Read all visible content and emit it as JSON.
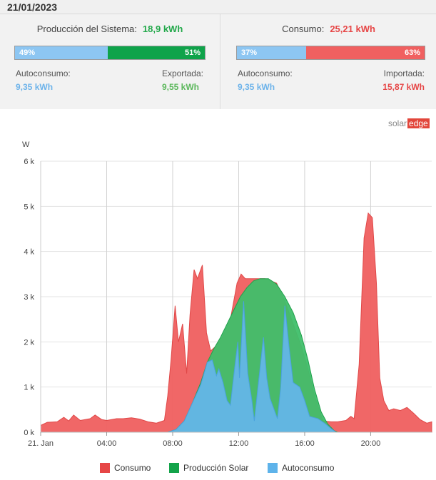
{
  "date": "21/01/2023",
  "production": {
    "title": "Producción del Sistema:",
    "value": "18,9 kWh",
    "self_pct_label": "49%",
    "export_pct_label": "51%",
    "self_fraction": 0.49,
    "self_label": "Autoconsumo:",
    "self_value": "9,35 kWh",
    "export_label": "Exportada:",
    "export_value": "9,55 kWh"
  },
  "consumption": {
    "title": "Consumo:",
    "value": "25,21 kWh",
    "self_pct_label": "37%",
    "import_pct_label": "63%",
    "self_fraction": 0.37,
    "self_label": "Autoconsumo:",
    "self_value": "9,35 kWh",
    "import_label": "Importada:",
    "import_value": "15,87 kWh"
  },
  "brand": {
    "part1": "solar",
    "part2": "edge"
  },
  "colors": {
    "production_green": "#22a84a",
    "consumption_red": "#e64646",
    "self_blue": "#6db3ea",
    "bar_blue": "#8dc6f2",
    "bar_green": "#0fa34a",
    "bar_red": "#f06060",
    "area_red": "#ef5f5f",
    "area_green": "#3fbf6a",
    "area_blue": "#64b5e8"
  },
  "chart_data": {
    "type": "area",
    "title": "",
    "xlabel": "",
    "ylabel": "W",
    "ylim": [
      0,
      6000
    ],
    "yticks": [
      0,
      1000,
      2000,
      3000,
      4000,
      5000,
      6000
    ],
    "ytick_labels": [
      "0 k",
      "1 k",
      "2 k",
      "3 k",
      "4 k",
      "5 k",
      "6 k"
    ],
    "xlim": [
      0,
      23.7
    ],
    "xticks": [
      0,
      4,
      8,
      12,
      16,
      20
    ],
    "xtick_labels": [
      "21. Jan",
      "04:00",
      "08:00",
      "12:00",
      "16:00",
      "20:00"
    ],
    "grid": true,
    "legend_position": "bottom",
    "series": [
      {
        "name": "Consumo",
        "color": "#ef5f5f",
        "points": [
          [
            0,
            150
          ],
          [
            0.4,
            220
          ],
          [
            1,
            230
          ],
          [
            1.4,
            330
          ],
          [
            1.7,
            250
          ],
          [
            2,
            380
          ],
          [
            2.4,
            260
          ],
          [
            3,
            300
          ],
          [
            3.3,
            380
          ],
          [
            3.7,
            280
          ],
          [
            4,
            260
          ],
          [
            4.6,
            300
          ],
          [
            5,
            300
          ],
          [
            5.5,
            320
          ],
          [
            6,
            290
          ],
          [
            6.5,
            230
          ],
          [
            7,
            200
          ],
          [
            7.5,
            260
          ],
          [
            7.7,
            800
          ],
          [
            7.9,
            1600
          ],
          [
            8.15,
            2800
          ],
          [
            8.35,
            2000
          ],
          [
            8.6,
            2400
          ],
          [
            8.85,
            1300
          ],
          [
            9.05,
            2600
          ],
          [
            9.3,
            3600
          ],
          [
            9.5,
            3400
          ],
          [
            9.8,
            3700
          ],
          [
            10.05,
            2200
          ],
          [
            10.3,
            1800
          ],
          [
            10.6,
            1900
          ],
          [
            11,
            2100
          ],
          [
            11.5,
            2500
          ],
          [
            11.9,
            3300
          ],
          [
            12.15,
            3500
          ],
          [
            12.4,
            3400
          ],
          [
            13,
            3400
          ],
          [
            13.6,
            3400
          ],
          [
            14.3,
            3300
          ],
          [
            14.8,
            2900
          ],
          [
            15.3,
            2400
          ],
          [
            15.8,
            1900
          ],
          [
            16.2,
            1400
          ],
          [
            16.6,
            800
          ],
          [
            17.1,
            250
          ],
          [
            17.6,
            230
          ],
          [
            18,
            230
          ],
          [
            18.5,
            260
          ],
          [
            18.8,
            350
          ],
          [
            19,
            300
          ],
          [
            19.3,
            1500
          ],
          [
            19.6,
            4300
          ],
          [
            19.85,
            4850
          ],
          [
            20.1,
            4750
          ],
          [
            20.35,
            3300
          ],
          [
            20.55,
            1200
          ],
          [
            20.8,
            700
          ],
          [
            21.1,
            480
          ],
          [
            21.4,
            520
          ],
          [
            21.8,
            480
          ],
          [
            22.2,
            550
          ],
          [
            22.6,
            420
          ],
          [
            23,
            280
          ],
          [
            23.4,
            200
          ],
          [
            23.7,
            230
          ]
        ]
      },
      {
        "name": "Producción Solar",
        "color": "#3fbf6a",
        "points": [
          [
            0,
            0
          ],
          [
            7.7,
            0
          ],
          [
            8.2,
            60
          ],
          [
            8.7,
            250
          ],
          [
            9.2,
            650
          ],
          [
            9.7,
            1100
          ],
          [
            10.1,
            1550
          ],
          [
            10.5,
            1850
          ],
          [
            10.9,
            2100
          ],
          [
            11.3,
            2400
          ],
          [
            11.7,
            2700
          ],
          [
            12.1,
            3000
          ],
          [
            12.5,
            3200
          ],
          [
            12.9,
            3350
          ],
          [
            13.3,
            3400
          ],
          [
            13.8,
            3400
          ],
          [
            14.3,
            3280
          ],
          [
            14.8,
            3000
          ],
          [
            15.3,
            2650
          ],
          [
            15.8,
            2150
          ],
          [
            16.2,
            1600
          ],
          [
            16.6,
            950
          ],
          [
            17,
            450
          ],
          [
            17.4,
            180
          ],
          [
            17.8,
            30
          ],
          [
            18,
            0
          ],
          [
            23.7,
            0
          ]
        ]
      },
      {
        "name": "Autoconsumo",
        "color": "#64b5e8",
        "points": [
          [
            0,
            0
          ],
          [
            7.7,
            0
          ],
          [
            8.2,
            60
          ],
          [
            8.7,
            250
          ],
          [
            9.2,
            650
          ],
          [
            9.7,
            1050
          ],
          [
            10.1,
            1550
          ],
          [
            10.4,
            1600
          ],
          [
            10.65,
            1250
          ],
          [
            10.8,
            1400
          ],
          [
            11.05,
            1100
          ],
          [
            11.3,
            700
          ],
          [
            11.5,
            600
          ],
          [
            11.75,
            1400
          ],
          [
            11.95,
            2000
          ],
          [
            12.05,
            1200
          ],
          [
            12.3,
            2900
          ],
          [
            12.55,
            1300
          ],
          [
            12.8,
            700
          ],
          [
            12.95,
            250
          ],
          [
            13.2,
            1100
          ],
          [
            13.5,
            2100
          ],
          [
            13.7,
            1200
          ],
          [
            13.9,
            750
          ],
          [
            14.1,
            550
          ],
          [
            14.35,
            300
          ],
          [
            14.55,
            1000
          ],
          [
            14.8,
            2800
          ],
          [
            15.05,
            1900
          ],
          [
            15.3,
            1100
          ],
          [
            15.7,
            1000
          ],
          [
            16,
            700
          ],
          [
            16.3,
            350
          ],
          [
            16.8,
            300
          ],
          [
            17.2,
            200
          ],
          [
            17.6,
            80
          ],
          [
            17.9,
            0
          ],
          [
            23.7,
            0
          ]
        ]
      }
    ]
  }
}
